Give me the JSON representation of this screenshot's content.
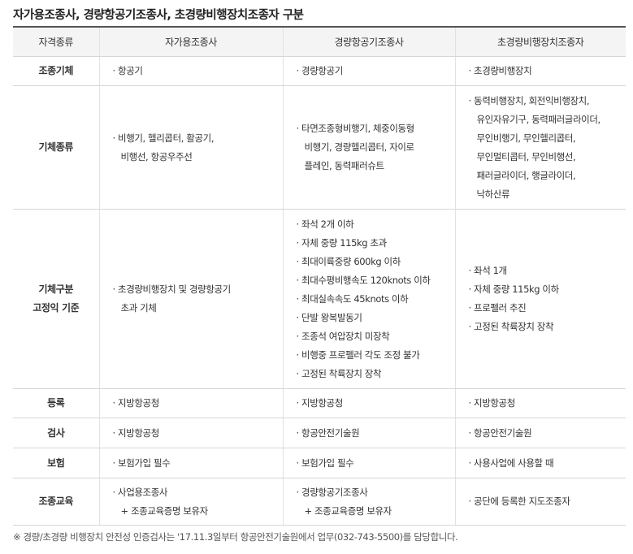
{
  "title": "자가용조종사, 경량항공기조종사, 초경량비행장치조종자 구분",
  "headers": [
    "자격종류",
    "자가용조종사",
    "경량항공기조종사",
    "초경량비행장치조종자"
  ],
  "rows": [
    {
      "label": [
        "조종기체"
      ],
      "cells": [
        [
          "· 항공기"
        ],
        [
          "· 경량항공기"
        ],
        [
          "· 초경량비행장치"
        ]
      ]
    },
    {
      "label": [
        "기체종류"
      ],
      "cells": [
        [
          "· 비행기, 헬리콥터, 활공기,",
          "비행선, 항공우주선"
        ],
        [
          "· 타면조종형비행기, 체중이동형",
          "비행기, 경량헬리콥터, 자이로",
          "플레인, 동력패러슈트"
        ],
        [
          "· 동력비행장치, 회전익비행장치,",
          "유인자유기구, 동력패러글라이더,",
          "무인비행기, 무인헬리콥터,",
          "무인멀티콥터, 무인비행선,",
          "패러글라이더, 행글라이더,",
          "낙하산류"
        ]
      ]
    },
    {
      "label": [
        "기체구분",
        "고정익 기준"
      ],
      "cells": [
        [
          "· 초경량비행장치 및 경량항공기",
          "초과 기체"
        ],
        [
          "· 좌석 2개 이하",
          "· 자체 중량 115kg 초과",
          "· 최대이륙중량 600kg 이하",
          "· 최대수평비행속도 120knots 이하",
          "· 최대실속속도 45knots 이하",
          "· 단발 왕복발동기",
          "· 조종석 여압장치 미장착",
          "· 비행중 프로펠러 각도 조정 불가",
          "· 고정된 착륙장치 장착"
        ],
        [
          "· 좌석 1개",
          "· 자체 중량 115kg 이하",
          "· 프로펠러 추진",
          "· 고정된 착륙장치 장착"
        ]
      ]
    },
    {
      "label": [
        "등록"
      ],
      "cells": [
        [
          "· 지방항공청"
        ],
        [
          "· 지방항공청"
        ],
        [
          "· 지방항공청"
        ]
      ]
    },
    {
      "label": [
        "검사"
      ],
      "cells": [
        [
          "· 지방항공청"
        ],
        [
          "· 항공안전기술원"
        ],
        [
          "· 항공안전기술원"
        ]
      ]
    },
    {
      "label": [
        "보험"
      ],
      "cells": [
        [
          "· 보험가입 필수"
        ],
        [
          "· 보험가입 필수"
        ],
        [
          "· 사용사업에 사용할 때"
        ]
      ]
    },
    {
      "label": [
        "조종교육"
      ],
      "cells": [
        [
          "· 사업용조종사",
          "+ 조종교육증명 보유자"
        ],
        [
          "· 경량항공기조종사",
          "+ 조종교육증명 보유자"
        ],
        [
          "· 공단에 등록한 지도조종자"
        ]
      ]
    }
  ],
  "footnote": "※ 경량/초경량 비행장치 안전성 인증검사는 '17.11.3일부터 항공안전기술원에서 업무(032-743-5500)를 담당합니다."
}
